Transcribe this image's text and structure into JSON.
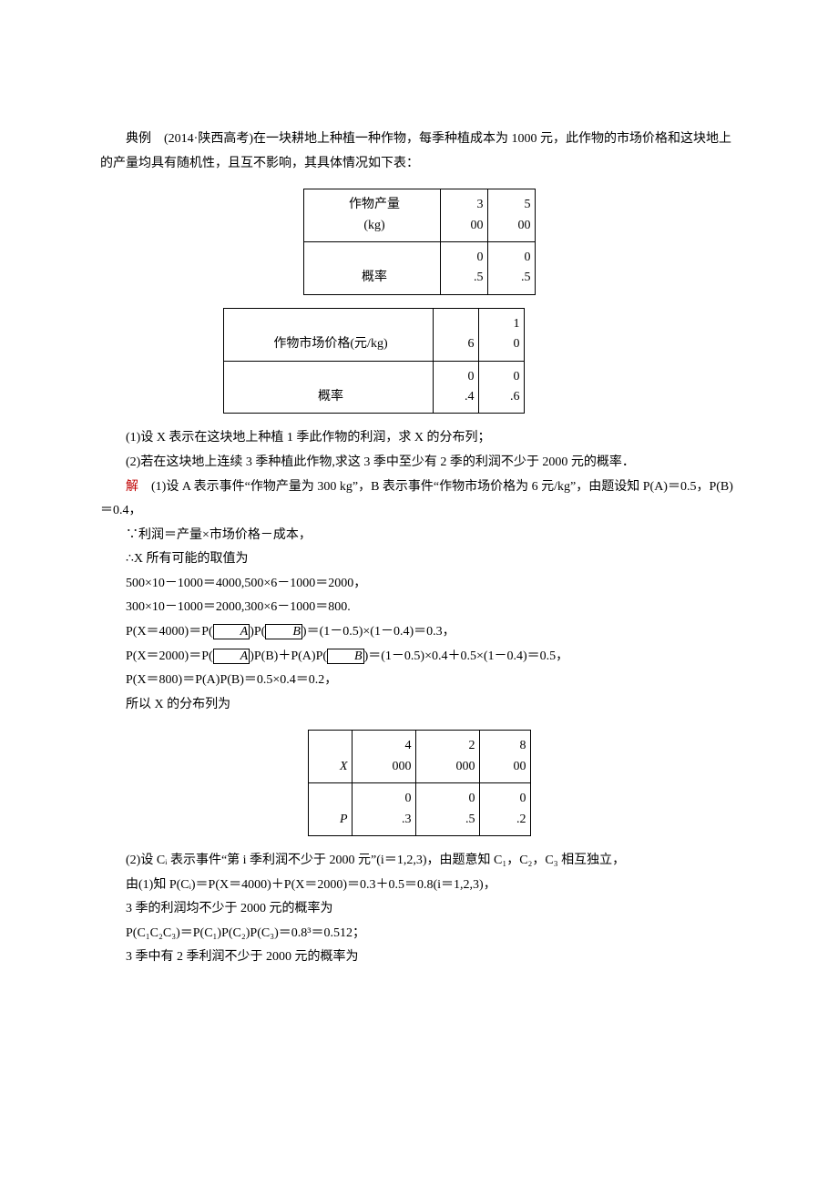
{
  "intro": {
    "prefix": "典例 (2014·陕西高考)在一块耕地上种植一种作物，每季种植成本为 1000 元，此作物的市场价格和这块地上的产量均具有随机性，且互不影响，其具体情况如下表："
  },
  "table1": {
    "r1c1_l1": "作物产量",
    "r1c1_l2": "(kg)",
    "r1c2_l1": "3",
    "r1c2_l2": "00",
    "r1c3_l1": "5",
    "r1c3_l2": "00",
    "r2c1": "概率",
    "r2c2_l1": "0",
    "r2c2_l2": ".5",
    "r2c3_l1": "0",
    "r2c3_l2": ".5"
  },
  "table2": {
    "r1c1": "作物市场价格(元/kg)",
    "r1c2_l1": "6",
    "r1c3_l1": "1",
    "r1c3_l2": "0",
    "r2c1": "概率",
    "r2c2_l1": "0",
    "r2c2_l2": ".4",
    "r2c3_l1": "0",
    "r2c3_l2": ".6"
  },
  "q1": "(1)设 X 表示在这块地上种植 1 季此作物的利润，求 X 的分布列；",
  "q2": "(2)若在这块地上连续 3 季种植此作物,求这 3 季中至少有 2 季的利润不少于 2000 元的概率．",
  "sol_label": "解",
  "sol1a": " (1)设 A 表示事件“作物产量为 300 kg”，B 表示事件“作物市场价格为 6 元/kg”，由题设知 P(A)＝0.5，P(B)＝0.4，",
  "s1": "∵利润＝产量×市场价格－成本，",
  "s2": "∴X 所有可能的取值为",
  "s3": "500×10－1000＝4000,500×6－1000＝2000，",
  "s4": "300×10－1000＝2000,300×6－1000＝800.",
  "s5a": "P(X＝4000)＝P(",
  "s5b": ")P(",
  "s5c": ")＝(1－0.5)×(1－0.4)＝0.3，",
  "s6a": "P(X＝2000)＝P(",
  "s6b": ")P(B)＋P(A)P(",
  "s6c": ")＝(1－0.5)×0.4＋0.5×(1－0.4)＝0.5，",
  "s7": "P(X＝800)＝P(A)P(B)＝0.5×0.4＝0.2，",
  "s8": "所以 X 的分布列为",
  "table3": {
    "r1c1": "X",
    "r1c2_l1": "4",
    "r1c2_l2": "000",
    "r1c3_l1": "2",
    "r1c3_l2": "000",
    "r1c4_l1": "8",
    "r1c4_l2": "00",
    "r2c1": "P",
    "r2c2_l1": "0",
    "r2c2_l2": ".3",
    "r2c3_l1": "0",
    "r2c3_l2": ".5",
    "r2c4_l1": "0",
    "r2c4_l2": ".2"
  },
  "p2a": "(2)设 Cᵢ 表示事件“第 i 季利润不少于 2000 元”(i＝1,2,3)，由题意知 C₁，C₂，C₃ 相互独立，",
  "p2b": "由(1)知 P(Cᵢ)＝P(X＝4000)＋P(X＝2000)＝0.3＋0.5＝0.8(i＝1,2,3)，",
  "p2c": "3 季的利润均不少于 2000 元的概率为",
  "p2d": "P(C₁C₂C₃)＝P(C₁)P(C₂)P(C₃)＝0.8³＝0.512；",
  "p2e": "3 季中有 2 季利润不少于 2000 元的概率为",
  "glyphA": "A",
  "glyphB": "B"
}
